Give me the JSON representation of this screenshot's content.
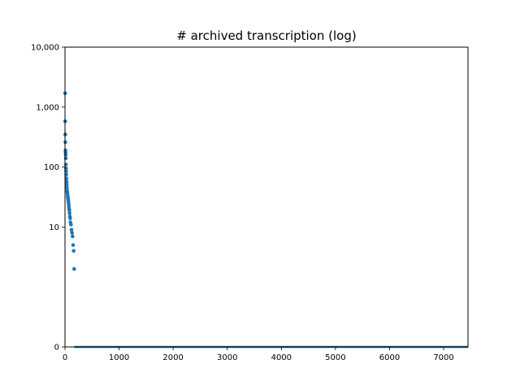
{
  "chart_data": {
    "type": "scatter",
    "title": "# archived transcription (log)",
    "xlabel": "",
    "ylabel": "",
    "xlim": [
      0,
      7450
    ],
    "ylim": [
      0,
      100000
    ],
    "y_scale": "symlog",
    "grid": false,
    "legend": "none",
    "marker_color": "#1f77b4",
    "x_ticks": [
      0,
      1000,
      2000,
      3000,
      4000,
      5000,
      6000,
      7000
    ],
    "x_tick_labels": [
      "0",
      "1000",
      "2000",
      "3000",
      "4000",
      "5000",
      "6000",
      "7000"
    ],
    "y_ticks": [
      0,
      10,
      100,
      1000,
      10000
    ],
    "y_tick_labels": [
      "0",
      "10",
      "100",
      "1,000",
      "10,000"
    ],
    "series": [
      {
        "x": [
          2,
          3,
          5,
          7,
          9,
          11,
          13,
          15,
          17,
          19,
          21,
          23,
          25,
          27,
          30,
          33,
          36,
          40,
          44,
          48,
          52,
          56,
          60,
          64,
          68,
          72,
          76,
          80,
          85,
          90,
          95,
          100,
          110,
          120,
          130,
          140,
          150,
          160,
          170
        ],
        "y": [
          1700,
          580,
          350,
          260,
          190,
          175,
          160,
          140,
          110,
          95,
          85,
          75,
          65,
          58,
          55,
          50,
          45,
          40,
          38,
          35,
          32,
          30,
          28,
          26,
          24,
          22,
          20,
          19,
          17,
          15,
          14,
          12,
          11,
          9,
          8,
          7,
          5,
          4,
          2
        ],
        "baseline": {
          "x_start": 170,
          "x_end": 7450,
          "y": 0
        }
      }
    ]
  }
}
